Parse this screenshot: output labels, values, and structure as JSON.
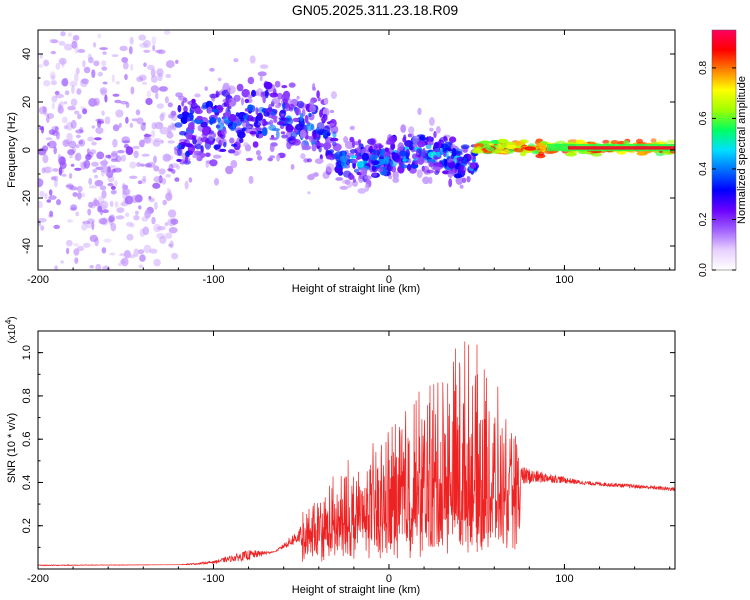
{
  "title": "GN05.2025.311.23.18.R09",
  "chart_data": [
    {
      "type": "heatmap",
      "name": "spectrogram",
      "xlabel": "Height of straight line (km)",
      "ylabel": "Frequency (Hz)",
      "xlim": [
        -200,
        163
      ],
      "ylim": [
        -50,
        50
      ],
      "xticks": [
        -200,
        -100,
        0,
        100
      ],
      "yticks": [
        -40,
        -20,
        0,
        20,
        40
      ],
      "colorbar": {
        "label": "Normalized spectral amplitude",
        "range": [
          0,
          0.95
        ],
        "ticks": [
          "0.0",
          "0.2",
          "0.4",
          "0.6",
          "0.8"
        ],
        "colormap": [
          "#ffffff",
          "#e8d0ff",
          "#a060ff",
          "#6a00ff",
          "#0000ff",
          "#0070ff",
          "#00e0ff",
          "#00ff60",
          "#a0ff00",
          "#ffff00",
          "#ff8000",
          "#ff0000",
          "#ff0060"
        ]
      },
      "description_regions": [
        {
          "x_from": -200,
          "x_to": -120,
          "freq_center": 0,
          "freq_spread": 50,
          "amplitude": 0.15
        },
        {
          "x_from": -120,
          "x_to": -30,
          "freq_center": 5,
          "freq_spread": 15,
          "amplitude": 0.3
        },
        {
          "x_from": -30,
          "x_to": 50,
          "freq_center": -3,
          "freq_spread": 8,
          "amplitude": 0.35
        },
        {
          "x_from": 50,
          "x_to": 163,
          "freq_center": 1,
          "freq_spread": 2,
          "amplitude": 0.85
        }
      ]
    },
    {
      "type": "line",
      "name": "snr",
      "xlabel": "Height of straight line (km)",
      "ylabel": "SNR (10 * v/v)",
      "multiplier": "(x10",
      "multiplier_exp": "4",
      "multiplier_close": ")",
      "xlim": [
        -200,
        163
      ],
      "ylim": [
        0,
        1.1
      ],
      "xticks": [
        -200,
        -100,
        0,
        100
      ],
      "yticks": [
        0.2,
        0.4,
        0.6,
        0.8,
        1.0
      ],
      "ytick_labels": [
        "0.2",
        "0.4",
        "0.6",
        "0.8",
        "1.0"
      ],
      "color": "#ee2222",
      "envelope": [
        {
          "x": -200,
          "y": 0.02
        },
        {
          "x": -120,
          "y": 0.02
        },
        {
          "x": -100,
          "y": 0.04
        },
        {
          "x": -80,
          "y": 0.1
        },
        {
          "x": -65,
          "y": 0.08
        },
        {
          "x": -50,
          "y": 0.22
        },
        {
          "x": -30,
          "y": 0.4
        },
        {
          "x": -10,
          "y": 0.5
        },
        {
          "x": 10,
          "y": 0.75
        },
        {
          "x": 25,
          "y": 0.85
        },
        {
          "x": 40,
          "y": 1.02
        },
        {
          "x": 55,
          "y": 0.85
        },
        {
          "x": 70,
          "y": 0.5
        },
        {
          "x": 85,
          "y": 0.46
        },
        {
          "x": 110,
          "y": 0.41
        },
        {
          "x": 163,
          "y": 0.38
        }
      ],
      "baseline": [
        {
          "x": -200,
          "y": 0.015
        },
        {
          "x": -110,
          "y": 0.02
        },
        {
          "x": -80,
          "y": 0.04
        },
        {
          "x": -50,
          "y": 0.12
        },
        {
          "x": -20,
          "y": 0.2
        },
        {
          "x": 20,
          "y": 0.25
        },
        {
          "x": 50,
          "y": 0.3
        },
        {
          "x": 70,
          "y": 0.38
        },
        {
          "x": 90,
          "y": 0.4
        },
        {
          "x": 110,
          "y": 0.39
        },
        {
          "x": 163,
          "y": 0.36
        }
      ]
    }
  ]
}
